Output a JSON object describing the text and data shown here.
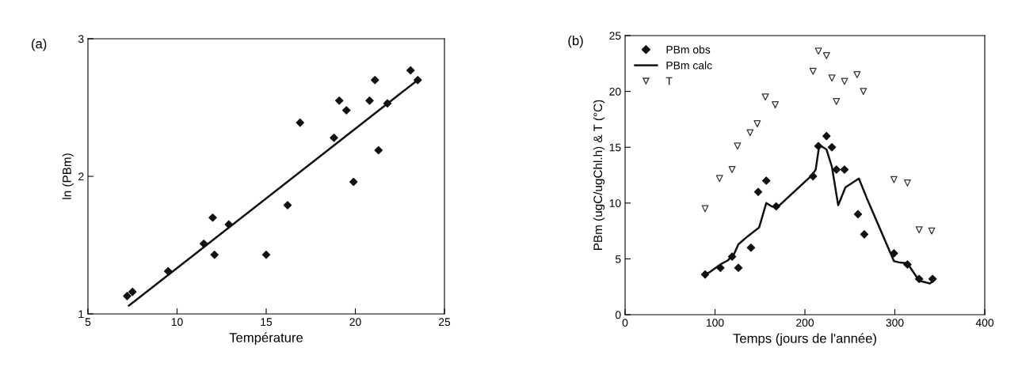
{
  "chart_data": [
    {
      "type": "scatter",
      "xlabel": "Température",
      "ylabel": "ln (PBm)",
      "annotations": [
        "(a)"
      ],
      "xlim": [
        5,
        25
      ],
      "xticks": [
        5,
        10,
        15,
        20,
        25
      ],
      "ylim": [
        1,
        3
      ],
      "yticks": [
        1,
        2,
        3
      ],
      "marker": "diamond",
      "grid": false,
      "legend": false,
      "series": [
        {
          "color": "#111111",
          "x": [
            7.2,
            7.5,
            9.5,
            11.5,
            12.0,
            12.1,
            12.9,
            15.0,
            16.2,
            16.9,
            18.8,
            19.1,
            19.5,
            19.9,
            20.8,
            21.1,
            21.3,
            21.8,
            23.1,
            23.5
          ],
          "values": [
            1.13,
            1.16,
            1.31,
            1.51,
            1.7,
            1.43,
            1.65,
            1.43,
            1.79,
            2.39,
            2.28,
            2.55,
            2.48,
            1.96,
            2.55,
            2.7,
            2.19,
            2.53,
            2.77,
            2.7
          ]
        },
        {
          "type": "line",
          "color": "#111111",
          "marker": "none",
          "line_style": "solid",
          "x": [
            7.3,
            23.4
          ],
          "values": [
            1.06,
            2.69
          ]
        }
      ]
    },
    {
      "type": "scatter",
      "xlabel": "Temps (jours de l'année)",
      "ylabel": "PBm (ugC/ugChl.h) & T (°C)",
      "annotations": [
        "(b)"
      ],
      "xlim": [
        0,
        400
      ],
      "xticks": [
        0,
        100,
        200,
        300,
        400
      ],
      "ylim": [
        0,
        25
      ],
      "yticks": [
        0,
        5,
        10,
        15,
        20,
        25
      ],
      "grid": false,
      "legend": "top left",
      "series": [
        {
          "name": "PBm obs",
          "marker": "diamond",
          "color": "#111111",
          "x": [
            89,
            106,
            119,
            126,
            140,
            148,
            157,
            168,
            209,
            215,
            224,
            230,
            235,
            244,
            259,
            266,
            299,
            314,
            327,
            342
          ],
          "values": [
            3.6,
            4.2,
            5.2,
            4.2,
            6.0,
            11.0,
            12.0,
            9.7,
            12.4,
            15.1,
            16.0,
            15.0,
            13.0,
            13.0,
            9.0,
            7.2,
            5.5,
            4.5,
            3.2,
            3.2
          ]
        },
        {
          "name": "PBm calc",
          "type": "line",
          "marker": "none",
          "line_style": "solid",
          "color": "#111111",
          "x": [
            86,
            94,
            106,
            114,
            121,
            126,
            136,
            149,
            157,
            163,
            169,
            208,
            212,
            216,
            224,
            230,
            237,
            245,
            260,
            269,
            299,
            304,
            314,
            327,
            339,
            343
          ],
          "values": [
            3.6,
            3.8,
            4.5,
            4.85,
            5.4,
            6.3,
            7.0,
            7.8,
            10.0,
            9.7,
            9.6,
            12.5,
            13.0,
            15.2,
            14.8,
            13.25,
            9.8,
            11.4,
            12.2,
            10.4,
            4.8,
            4.7,
            4.6,
            3.05,
            2.8,
            3.05
          ]
        },
        {
          "name": "T",
          "marker": "triangle",
          "color": "#333333",
          "x": [
            89,
            105,
            119,
            125,
            139,
            147,
            156,
            167,
            209,
            215,
            224,
            230,
            235,
            244,
            258,
            265,
            299,
            314,
            327,
            341
          ],
          "values": [
            9.5,
            12.2,
            13.0,
            15.1,
            16.3,
            17.1,
            19.5,
            18.8,
            21.8,
            23.6,
            23.2,
            21.2,
            19.1,
            20.9,
            21.5,
            20.0,
            12.1,
            11.8,
            7.6,
            7.5
          ]
        }
      ]
    }
  ]
}
